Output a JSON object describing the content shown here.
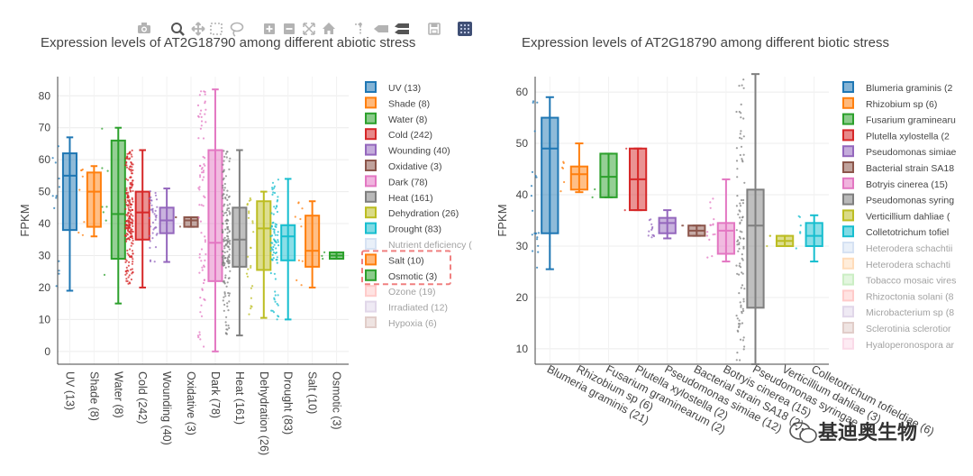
{
  "toolbar": {
    "buttons": [
      {
        "name": "camera-icon",
        "title": "Download plot as a png"
      },
      {
        "name": "zoom-icon",
        "title": "Zoom"
      },
      {
        "name": "pan-icon",
        "title": "Pan"
      },
      {
        "name": "box-select-icon",
        "title": "Box Select"
      },
      {
        "name": "lasso-select-icon",
        "title": "Lasso Select"
      },
      {
        "name": "zoom-in-icon",
        "title": "Zoom in"
      },
      {
        "name": "zoom-out-icon",
        "title": "Zoom out"
      },
      {
        "name": "autoscale-icon",
        "title": "Autoscale"
      },
      {
        "name": "home-icon",
        "title": "Reset axes"
      },
      {
        "name": "spike-lines-icon",
        "title": "Toggle Spike Lines"
      },
      {
        "name": "hover-closest-icon",
        "title": "Show closest data on hover"
      },
      {
        "name": "hover-compare-icon",
        "title": "Compare data on hover"
      },
      {
        "name": "save-icon",
        "title": "Save"
      },
      {
        "name": "plotly-logo-icon",
        "title": "Produced with Plotly"
      }
    ]
  },
  "watermark": {
    "text": "基迪奥生物"
  },
  "chart_data": [
    {
      "type": "box",
      "title": "Expression levels of AT2G18790 among different abiotic stress",
      "ylabel": "FPKM",
      "ylim": [
        -4,
        86
      ],
      "yticks": [
        0,
        10,
        20,
        30,
        40,
        50,
        60,
        70,
        80
      ],
      "grid": true,
      "legend_position": "right",
      "series": [
        {
          "name": "UV (13)",
          "color": "#1f77b4",
          "visible": true,
          "whisker_low": 19,
          "q1": 38,
          "median": 55,
          "q3": 62,
          "whisker_high": 67,
          "points": 13
        },
        {
          "name": "Shade (8)",
          "color": "#ff7f0e",
          "visible": true,
          "whisker_low": 36,
          "q1": 39,
          "median": 50,
          "q3": 56,
          "whisker_high": 58,
          "points": 8
        },
        {
          "name": "Water (8)",
          "color": "#2ca02c",
          "visible": true,
          "whisker_low": 15,
          "q1": 29,
          "median": 43,
          "q3": 66,
          "whisker_high": 70,
          "points": 8
        },
        {
          "name": "Cold (242)",
          "color": "#d62728",
          "visible": true,
          "whisker_low": 20,
          "q1": 35,
          "median": 43.5,
          "q3": 50,
          "whisker_high": 63,
          "points": 242
        },
        {
          "name": "Wounding (40)",
          "color": "#9467bd",
          "visible": true,
          "whisker_low": 28,
          "q1": 37,
          "median": 41,
          "q3": 45,
          "whisker_high": 51,
          "points": 40
        },
        {
          "name": "Oxidative (3)",
          "color": "#8c564b",
          "visible": true,
          "whisker_low": 39,
          "q1": 39,
          "median": 41,
          "q3": 42,
          "whisker_high": 42,
          "points": 3
        },
        {
          "name": "Dark (78)",
          "color": "#e377c2",
          "visible": true,
          "whisker_low": 0,
          "q1": 22,
          "median": 34,
          "q3": 63,
          "whisker_high": 82,
          "points": 78
        },
        {
          "name": "Heat (161)",
          "color": "#7f7f7f",
          "visible": true,
          "whisker_low": 5,
          "q1": 26.5,
          "median": 35,
          "q3": 45,
          "whisker_high": 63,
          "points": 161
        },
        {
          "name": "Dehydration (26)",
          "color": "#bcbd22",
          "visible": true,
          "whisker_low": 10.5,
          "q1": 25.5,
          "median": 38.5,
          "q3": 47,
          "whisker_high": 50,
          "points": 26
        },
        {
          "name": "Drought (83)",
          "color": "#17becf",
          "visible": true,
          "whisker_low": 10,
          "q1": 28.5,
          "median": 36,
          "q3": 39.5,
          "whisker_high": 54,
          "points": 83
        },
        {
          "name": "Nutrient deficiency (",
          "color": "#aec7e8",
          "visible": false
        },
        {
          "name": "Salt (10)",
          "color": "#ff7f0e",
          "visible": true,
          "whisker_low": 20,
          "q1": 26.5,
          "median": 31.5,
          "q3": 42.5,
          "whisker_high": 47,
          "points": 10
        },
        {
          "name": "Osmotic (3)",
          "color": "#2ca02c",
          "visible": true,
          "whisker_low": 29,
          "q1": 29,
          "median": 30,
          "q3": 31,
          "whisker_high": 31,
          "points": 3
        },
        {
          "name": "Ozone (19)",
          "color": "#ff9896",
          "visible": false
        },
        {
          "name": "Irradiated (12)",
          "color": "#c5b0d5",
          "visible": false
        },
        {
          "name": "Hypoxia (6)",
          "color": "#c49c94",
          "visible": false
        }
      ],
      "categories": [
        "UV (13)",
        "Shade (8)",
        "Water (8)",
        "Cold (242)",
        "Wounding (40)",
        "Oxidative (3)",
        "Dark (78)",
        "Heat (161)",
        "Dehydration (26)",
        "Drought (83)",
        "Salt (10)",
        "Osmotic (3)"
      ],
      "highlight": [
        "Salt (10)",
        "Osmotic (3)"
      ]
    },
    {
      "type": "box",
      "title": "Expression levels of AT2G18790 among different biotic stress",
      "ylabel": "FPKM",
      "ylim": [
        7,
        63
      ],
      "yticks": [
        10,
        20,
        30,
        40,
        50,
        60
      ],
      "grid": true,
      "legend_position": "right",
      "series": [
        {
          "name": "Blumeria graminis (2",
          "color": "#1f77b4",
          "visible": true,
          "whisker_low": 25.5,
          "q1": 32.5,
          "median": 49,
          "q3": 55,
          "whisker_high": 59,
          "points": 21
        },
        {
          "name": "Rhizobium sp (6)",
          "color": "#ff7f0e",
          "visible": true,
          "whisker_low": 40.5,
          "q1": 41,
          "median": 44,
          "q3": 45.5,
          "whisker_high": 50,
          "points": 6
        },
        {
          "name": "Fusarium graminearu",
          "color": "#2ca02c",
          "visible": true,
          "whisker_low": 39.5,
          "q1": 39.5,
          "median": 43.5,
          "q3": 48,
          "whisker_high": 48,
          "points": 2
        },
        {
          "name": "Plutella xylostella (2",
          "color": "#d62728",
          "visible": true,
          "whisker_low": 37,
          "q1": 37,
          "median": 43,
          "q3": 49,
          "whisker_high": 49,
          "points": 2
        },
        {
          "name": "Pseudomonas simiae",
          "color": "#9467bd",
          "visible": true,
          "whisker_low": 31.5,
          "q1": 32.5,
          "median": 34.5,
          "q3": 35.5,
          "whisker_high": 37,
          "points": 12
        },
        {
          "name": "Bacterial strain SA18",
          "color": "#8c564b",
          "visible": true,
          "whisker_low": 32,
          "q1": 32,
          "median": 33,
          "q3": 34,
          "whisker_high": 34,
          "points": 2
        },
        {
          "name": "Botryis cinerea (15)",
          "color": "#e377c2",
          "visible": true,
          "whisker_low": 27,
          "q1": 28.5,
          "median": 33,
          "q3": 34.5,
          "whisker_high": 43,
          "points": 15
        },
        {
          "name": "Pseudomonas syring",
          "color": "#7f7f7f",
          "visible": true,
          "whisker_low": 7,
          "q1": 18,
          "median": 34,
          "q3": 41,
          "whisker_high": 63.5,
          "points": 100
        },
        {
          "name": "Verticillium dahliae (",
          "color": "#bcbd22",
          "visible": true,
          "whisker_low": 30,
          "q1": 30,
          "median": 31,
          "q3": 32,
          "whisker_high": 32,
          "points": 3
        },
        {
          "name": "Colletotrichum tofiel",
          "color": "#17becf",
          "visible": true,
          "whisker_low": 27,
          "q1": 30,
          "median": 32,
          "q3": 34.5,
          "whisker_high": 36,
          "points": 6
        },
        {
          "name": "Heterodera schachtii",
          "color": "#aec7e8",
          "visible": false
        },
        {
          "name": "Heterodera schachti",
          "color": "#ffbb78",
          "visible": false
        },
        {
          "name": "Tobacco mosaic vires",
          "color": "#98df8a",
          "visible": false
        },
        {
          "name": "Rhizoctonia solani (8",
          "color": "#ff9896",
          "visible": false
        },
        {
          "name": "Microbacterium sp (8",
          "color": "#c5b0d5",
          "visible": false
        },
        {
          "name": "Sclerotinia sclerotior",
          "color": "#c49c94",
          "visible": false
        },
        {
          "name": "Hyaloperonospora ar",
          "color": "#f7b6d2",
          "visible": false
        }
      ],
      "categories": [
        "Blumeria graminis (21)",
        "Rhizobium sp (6)",
        "Fusarium graminearum (2)",
        "Plutella xylostella (2)",
        "Pseudomonas simiae (12)",
        "Bacterial strain SA18 (2)",
        "Botryis cinerea (15)",
        "Pseudomonas syringae",
        "Verticillium dahliae (3)",
        "Colletotrichum tofieldiae (6)"
      ]
    }
  ]
}
